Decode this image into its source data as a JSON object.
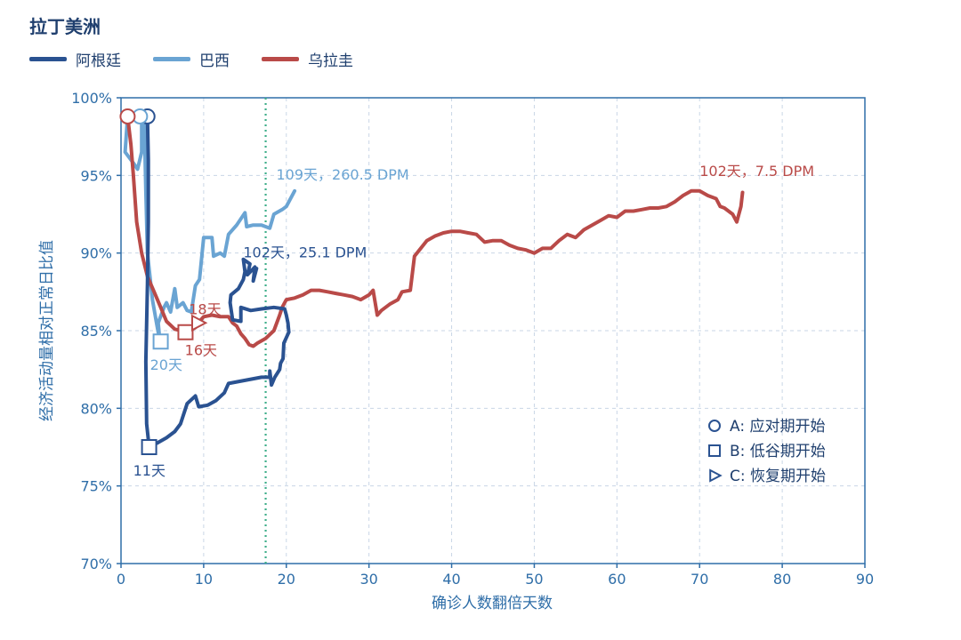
{
  "chart_data": {
    "type": "line",
    "title": "拉丁美洲",
    "xlabel": "确诊人数翻倍天数",
    "ylabel": "经济活动量相对正常日比值",
    "xlim": [
      0,
      90
    ],
    "ylim": [
      70,
      100
    ],
    "x_ticks": [
      "0",
      "10",
      "20",
      "30",
      "40",
      "50",
      "60",
      "70",
      "80",
      "90"
    ],
    "y_ticks": [
      "70%",
      "75%",
      "80%",
      "85%",
      "90%",
      "95%",
      "100%"
    ],
    "grid": true,
    "reference_line_x": 17.5,
    "series": [
      {
        "name": "阿根廷",
        "color": "#2a5291",
        "points": [
          [
            3.2,
            98.8
          ],
          [
            3.3,
            96
          ],
          [
            3.3,
            92
          ],
          [
            3.2,
            88
          ],
          [
            3.0,
            83
          ],
          [
            3.1,
            79
          ],
          [
            3.4,
            77.5
          ],
          [
            4.5,
            77.8
          ],
          [
            5.5,
            78.1
          ],
          [
            6.5,
            78.5
          ],
          [
            7.2,
            79
          ],
          [
            8,
            80.3
          ],
          [
            9,
            80.8
          ],
          [
            9.4,
            80.1
          ],
          [
            10.5,
            80.2
          ],
          [
            11.5,
            80.5
          ],
          [
            12.5,
            81
          ],
          [
            13,
            81.6
          ],
          [
            14,
            81.7
          ],
          [
            15,
            81.8
          ],
          [
            16,
            81.9
          ],
          [
            17,
            82
          ],
          [
            18,
            82
          ],
          [
            18,
            82.4
          ],
          [
            18.2,
            81.5
          ],
          [
            18.6,
            82
          ],
          [
            19.2,
            82.5
          ],
          [
            19.3,
            82.9
          ],
          [
            19.6,
            83.2
          ],
          [
            19.7,
            84.2
          ],
          [
            20.3,
            84.9
          ],
          [
            20.2,
            85.5
          ],
          [
            20,
            86
          ],
          [
            19.8,
            86.4
          ],
          [
            18.5,
            86.5
          ],
          [
            17,
            86.4
          ],
          [
            15.7,
            86.3
          ],
          [
            14.5,
            86.5
          ],
          [
            14.5,
            85.6
          ],
          [
            13.5,
            85.7
          ],
          [
            13.2,
            86.8
          ],
          [
            13.3,
            87.3
          ],
          [
            14.2,
            87.7
          ],
          [
            14.8,
            88.3
          ],
          [
            15,
            88.8
          ],
          [
            14.8,
            89.6
          ],
          [
            15.6,
            89.3
          ],
          [
            15.3,
            88.6
          ],
          [
            16.2,
            89.1
          ],
          [
            16,
            88.2
          ],
          [
            16.4,
            89
          ]
        ],
        "labels": [
          {
            "text": "11天",
            "x": 3.4,
            "y": 77.5
          },
          {
            "text": "102天，25.1 DPM",
            "x": 15,
            "y": 89.5
          }
        ]
      },
      {
        "name": "巴西",
        "color": "#6aa4d3",
        "points": [
          [
            0.8,
            98.8
          ],
          [
            0.5,
            96.5
          ],
          [
            1.5,
            95.8
          ],
          [
            2.0,
            95.4
          ],
          [
            2.5,
            96.5
          ],
          [
            2.5,
            98.5
          ],
          [
            2.8,
            98.8
          ],
          [
            3.0,
            94
          ],
          [
            3.2,
            90
          ],
          [
            3.5,
            88.5
          ],
          [
            3.8,
            87
          ],
          [
            4.3,
            85.5
          ],
          [
            4.7,
            84.3
          ],
          [
            4.5,
            85.5
          ],
          [
            5.2,
            86.5
          ],
          [
            5.5,
            86.8
          ],
          [
            6.0,
            86.2
          ],
          [
            6.5,
            87.7
          ],
          [
            6.8,
            86.5
          ],
          [
            7.5,
            86.8
          ],
          [
            8.0,
            86.3
          ],
          [
            8.5,
            86.2
          ],
          [
            9.0,
            87.9
          ],
          [
            9.5,
            88.3
          ],
          [
            10.0,
            91
          ],
          [
            11,
            91
          ],
          [
            11.2,
            89.8
          ],
          [
            12,
            90
          ],
          [
            12.5,
            89.8
          ],
          [
            13,
            91.2
          ],
          [
            14,
            91.8
          ],
          [
            15,
            92.6
          ],
          [
            15.2,
            91.7
          ],
          [
            16,
            91.8
          ],
          [
            17,
            91.8
          ],
          [
            18,
            91.6
          ],
          [
            18.5,
            92.5
          ],
          [
            19.5,
            92.8
          ],
          [
            20,
            93
          ],
          [
            21,
            94
          ]
        ],
        "labels": [
          {
            "text": "20天",
            "x": 4.8,
            "y": 84.3
          },
          {
            "text": "109天，260.5 DPM",
            "x": 19,
            "y": 94.5
          }
        ]
      },
      {
        "name": "乌拉圭",
        "color": "#b94a48",
        "points": [
          [
            0.8,
            98.8
          ],
          [
            1.2,
            97
          ],
          [
            1.5,
            95
          ],
          [
            1.9,
            92
          ],
          [
            2.5,
            90
          ],
          [
            3.2,
            88.5
          ],
          [
            4,
            87.5
          ],
          [
            4.8,
            86.5
          ],
          [
            5.5,
            85.6
          ],
          [
            6.5,
            85.1
          ],
          [
            8,
            84.9
          ],
          [
            9,
            85.2
          ],
          [
            9.5,
            85.6
          ],
          [
            10,
            85.9
          ],
          [
            11,
            86
          ],
          [
            12,
            85.9
          ],
          [
            13,
            85.9
          ],
          [
            13.5,
            85.5
          ],
          [
            14,
            85.3
          ],
          [
            14.5,
            84.8
          ],
          [
            15,
            84.5
          ],
          [
            15.5,
            84.1
          ],
          [
            16,
            84
          ],
          [
            16.5,
            84.2
          ],
          [
            17.5,
            84.5
          ],
          [
            18.5,
            85
          ],
          [
            19.2,
            86
          ],
          [
            19.5,
            86.5
          ],
          [
            20,
            87
          ],
          [
            21,
            87.1
          ],
          [
            22,
            87.3
          ],
          [
            23,
            87.6
          ],
          [
            24,
            87.6
          ],
          [
            25,
            87.5
          ],
          [
            26,
            87.4
          ],
          [
            27,
            87.3
          ],
          [
            28,
            87.2
          ],
          [
            29,
            87
          ],
          [
            30,
            87.3
          ],
          [
            30.5,
            87.6
          ],
          [
            31,
            86
          ],
          [
            31.5,
            86.3
          ],
          [
            32.5,
            86.7
          ],
          [
            33.5,
            87
          ],
          [
            34,
            87.5
          ],
          [
            35,
            87.6
          ],
          [
            35.5,
            89.8
          ],
          [
            37,
            90.8
          ],
          [
            38,
            91.1
          ],
          [
            39,
            91.3
          ],
          [
            40,
            91.4
          ],
          [
            41,
            91.4
          ],
          [
            42,
            91.3
          ],
          [
            43,
            91.2
          ],
          [
            44,
            90.7
          ],
          [
            45,
            90.8
          ],
          [
            46,
            90.8
          ],
          [
            47,
            90.5
          ],
          [
            48,
            90.3
          ],
          [
            49,
            90.2
          ],
          [
            50,
            90
          ],
          [
            51,
            90.3
          ],
          [
            52,
            90.3
          ],
          [
            53,
            90.8
          ],
          [
            54,
            91.2
          ],
          [
            55,
            91
          ],
          [
            56,
            91.5
          ],
          [
            57,
            91.8
          ],
          [
            58,
            92.1
          ],
          [
            59,
            92.4
          ],
          [
            60,
            92.3
          ],
          [
            61,
            92.7
          ],
          [
            62,
            92.7
          ],
          [
            63,
            92.8
          ],
          [
            64,
            92.9
          ],
          [
            65,
            92.9
          ],
          [
            66,
            93
          ],
          [
            67,
            93.3
          ],
          [
            68,
            93.7
          ],
          [
            69,
            94
          ],
          [
            70,
            94
          ],
          [
            71,
            93.7
          ],
          [
            72,
            93.5
          ],
          [
            72.5,
            93
          ],
          [
            73,
            92.9
          ],
          [
            74,
            92.5
          ],
          [
            74.5,
            92
          ],
          [
            75,
            93
          ],
          [
            75.2,
            93.9
          ]
        ],
        "labels": [
          {
            "text": "16天",
            "x": 7.5,
            "y": 84.9
          },
          {
            "text": "18天",
            "x": 9.5,
            "y": 85.6
          },
          {
            "text": "102天，7.5 DPM",
            "x": 70,
            "y": 94.5
          }
        ]
      }
    ],
    "markers": [
      {
        "series": 0,
        "shape": "circle",
        "x": 3.2,
        "y": 98.8
      },
      {
        "series": 1,
        "shape": "circle",
        "x": 2.3,
        "y": 98.8
      },
      {
        "series": 2,
        "shape": "circle",
        "x": 0.8,
        "y": 98.8
      },
      {
        "series": 0,
        "shape": "square",
        "x": 3.4,
        "y": 77.5
      },
      {
        "series": 1,
        "shape": "square",
        "x": 4.8,
        "y": 84.3
      },
      {
        "series": 2,
        "shape": "square",
        "x": 7.8,
        "y": 84.9
      },
      {
        "series": 2,
        "shape": "triangle",
        "x": 9.3,
        "y": 85.5
      }
    ],
    "marker_key": [
      {
        "shape": "circle",
        "text": "A: 应对期开始"
      },
      {
        "shape": "square",
        "text": "B: 低谷期开始"
      },
      {
        "shape": "triangle",
        "text": "C: 恢复期开始"
      }
    ]
  }
}
